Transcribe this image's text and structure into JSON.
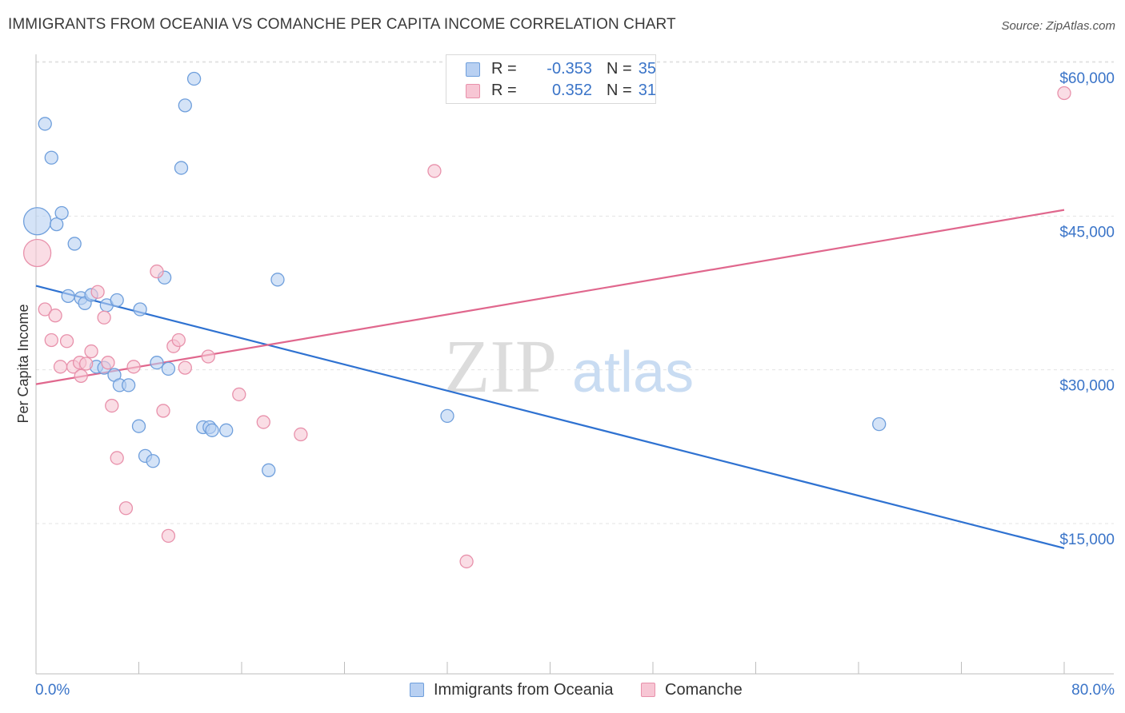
{
  "title": "IMMIGRANTS FROM OCEANIA VS COMANCHE PER CAPITA INCOME CORRELATION CHART",
  "source": "Source: ZipAtlas.com",
  "watermark": {
    "part1": "ZIP",
    "part2": "atlas"
  },
  "legend_top": {
    "rows": [
      {
        "r_label": "R =",
        "r_value": "-0.353",
        "n_label": "N =",
        "n_value": "35"
      },
      {
        "r_label": "R =",
        "r_value": "0.352",
        "n_label": "N =",
        "n_value": "31"
      }
    ]
  },
  "legend_bottom": {
    "items": [
      {
        "label": "Immigrants from Oceania"
      },
      {
        "label": "Comanche"
      }
    ]
  },
  "colors": {
    "blue_fill": "#b8d0f2",
    "blue_stroke": "#6f9fdc",
    "blue_line": "#2f72d1",
    "pink_fill": "#f7c6d4",
    "pink_stroke": "#e891ab",
    "pink_line": "#e0678d",
    "axis_label": "#3a74c8",
    "grid": "#e3e3e3"
  },
  "chart_data": {
    "type": "scatter",
    "title": "IMMIGRANTS FROM OCEANIA VS COMANCHE PER CAPITA INCOME CORRELATION CHART",
    "xlabel": "",
    "ylabel": "Per Capita Income",
    "xlim": [
      0,
      80
    ],
    "ylim": [
      0,
      62000
    ],
    "x_tick_labels": [
      "0.0%",
      "80.0%"
    ],
    "y_ticks": [
      15000,
      30000,
      45000,
      60000
    ],
    "y_tick_labels": [
      "$15,000",
      "$30,000",
      "$45,000",
      "$60,000"
    ],
    "grid": true,
    "series": [
      {
        "name": "Immigrants from Oceania",
        "color": "#6f9fdc",
        "r": -0.353,
        "n": 35,
        "trend": {
          "x": [
            0,
            80
          ],
          "y": [
            38200,
            12600
          ]
        },
        "points": [
          {
            "x": 0.1,
            "y": 44500,
            "big": true
          },
          {
            "x": 0.7,
            "y": 54000
          },
          {
            "x": 1.2,
            "y": 50700
          },
          {
            "x": 1.6,
            "y": 44200
          },
          {
            "x": 2.0,
            "y": 45300
          },
          {
            "x": 3.0,
            "y": 42300
          },
          {
            "x": 2.5,
            "y": 37200
          },
          {
            "x": 3.5,
            "y": 37000
          },
          {
            "x": 3.8,
            "y": 36500
          },
          {
            "x": 4.3,
            "y": 37300
          },
          {
            "x": 5.5,
            "y": 36300
          },
          {
            "x": 6.3,
            "y": 36800
          },
          {
            "x": 8.1,
            "y": 35900
          },
          {
            "x": 10.0,
            "y": 39000
          },
          {
            "x": 11.3,
            "y": 49700
          },
          {
            "x": 11.6,
            "y": 55800
          },
          {
            "x": 12.3,
            "y": 58400
          },
          {
            "x": 18.8,
            "y": 38800
          },
          {
            "x": 4.7,
            "y": 30300
          },
          {
            "x": 5.3,
            "y": 30200
          },
          {
            "x": 6.1,
            "y": 29500
          },
          {
            "x": 6.5,
            "y": 28500
          },
          {
            "x": 7.2,
            "y": 28500
          },
          {
            "x": 9.4,
            "y": 30700
          },
          {
            "x": 10.3,
            "y": 30100
          },
          {
            "x": 8.0,
            "y": 24500
          },
          {
            "x": 13.0,
            "y": 24400
          },
          {
            "x": 13.5,
            "y": 24400
          },
          {
            "x": 13.7,
            "y": 24100
          },
          {
            "x": 14.8,
            "y": 24100
          },
          {
            "x": 8.5,
            "y": 21600
          },
          {
            "x": 9.1,
            "y": 21100
          },
          {
            "x": 18.1,
            "y": 20200
          },
          {
            "x": 32.0,
            "y": 25500
          },
          {
            "x": 65.6,
            "y": 24700
          }
        ]
      },
      {
        "name": "Comanche",
        "color": "#e891ab",
        "r": 0.352,
        "n": 31,
        "trend": {
          "x": [
            0,
            80
          ],
          "y": [
            28600,
            45600
          ]
        },
        "points": [
          {
            "x": 0.1,
            "y": 41400,
            "big": true
          },
          {
            "x": 0.7,
            "y": 35900
          },
          {
            "x": 1.5,
            "y": 35300
          },
          {
            "x": 1.2,
            "y": 32900
          },
          {
            "x": 2.4,
            "y": 32800
          },
          {
            "x": 1.9,
            "y": 30300
          },
          {
            "x": 2.9,
            "y": 30300
          },
          {
            "x": 3.4,
            "y": 30700
          },
          {
            "x": 3.5,
            "y": 29400
          },
          {
            "x": 3.9,
            "y": 30600
          },
          {
            "x": 4.3,
            "y": 31800
          },
          {
            "x": 4.8,
            "y": 37600
          },
          {
            "x": 5.3,
            "y": 35100
          },
          {
            "x": 5.6,
            "y": 30700
          },
          {
            "x": 5.9,
            "y": 26500
          },
          {
            "x": 6.3,
            "y": 21400
          },
          {
            "x": 7.0,
            "y": 16500
          },
          {
            "x": 7.6,
            "y": 30300
          },
          {
            "x": 9.4,
            "y": 39600
          },
          {
            "x": 9.9,
            "y": 26000
          },
          {
            "x": 10.3,
            "y": 13800
          },
          {
            "x": 10.7,
            "y": 32300
          },
          {
            "x": 11.1,
            "y": 32900
          },
          {
            "x": 11.6,
            "y": 30200
          },
          {
            "x": 13.4,
            "y": 31300
          },
          {
            "x": 15.8,
            "y": 27600
          },
          {
            "x": 17.7,
            "y": 24900
          },
          {
            "x": 20.6,
            "y": 23700
          },
          {
            "x": 31.0,
            "y": 49400
          },
          {
            "x": 33.5,
            "y": 11300
          },
          {
            "x": 80.0,
            "y": 57000
          }
        ]
      }
    ]
  }
}
